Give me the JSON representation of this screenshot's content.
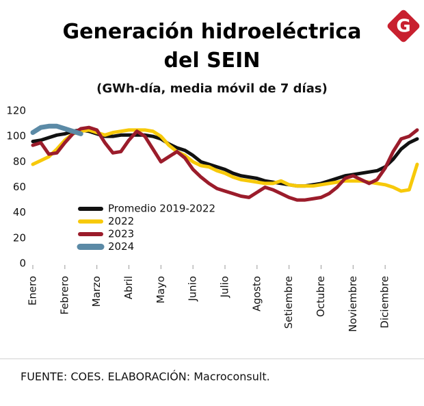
{
  "logo": "G",
  "chart_data": {
    "type": "line",
    "title": "Generación hidroeléctrica del SEIN",
    "subtitle": "(GWh-día, media móvil de 7 días)",
    "source": "FUENTE: COES. ELABORACIÓN: Macroconsult.",
    "x": [
      0,
      0.25,
      0.5,
      0.75,
      1,
      1.25,
      1.5,
      1.75,
      2,
      2.25,
      2.5,
      2.75,
      3,
      3.25,
      3.5,
      3.75,
      4,
      4.25,
      4.5,
      4.75,
      5,
      5.25,
      5.5,
      5.75,
      6,
      6.25,
      6.5,
      6.75,
      7,
      7.25,
      7.5,
      7.75,
      8,
      8.25,
      8.5,
      8.75,
      9,
      9.25,
      9.5,
      9.75,
      10,
      10.25,
      10.5,
      10.75,
      11,
      11.25,
      11.5,
      11.75,
      12
    ],
    "xlim": [
      0,
      12
    ],
    "xticks": [
      {
        "value": 0,
        "label": "Enero"
      },
      {
        "value": 1,
        "label": "Febrero"
      },
      {
        "value": 2,
        "label": "Marzo"
      },
      {
        "value": 3,
        "label": "Abril"
      },
      {
        "value": 4,
        "label": "Mayo"
      },
      {
        "value": 5,
        "label": "Junio"
      },
      {
        "value": 6,
        "label": "Julio"
      },
      {
        "value": 7,
        "label": "Agosto"
      },
      {
        "value": 8,
        "label": "Setiembre"
      },
      {
        "value": 9,
        "label": "Octubre"
      },
      {
        "value": 10,
        "label": "Noviembre"
      },
      {
        "value": 11,
        "label": "Diciembre"
      }
    ],
    "ylim": [
      0,
      120
    ],
    "yticks": [
      0,
      20,
      40,
      60,
      80,
      100,
      120
    ],
    "grid": false,
    "legend": "lower left",
    "series": [
      {
        "name": "Promedio 2019-2022",
        "color": "#111111",
        "values": [
          96,
          97,
          99,
          101,
          102,
          104,
          105,
          104,
          102,
          100,
          100,
          101,
          101,
          101,
          101,
          100,
          98,
          94,
          91,
          89,
          85,
          80,
          78,
          76,
          74,
          71,
          69,
          68,
          67,
          65,
          64,
          63,
          62,
          61,
          61,
          62,
          63,
          65,
          67,
          69,
          70,
          71,
          72,
          73,
          76,
          82,
          90,
          95,
          98
        ]
      },
      {
        "name": "2022",
        "color": "#f7c90a",
        "values": [
          78,
          81,
          84,
          90,
          97,
          102,
          104,
          105,
          103,
          101,
          103,
          104,
          105,
          105,
          105,
          104,
          100,
          93,
          88,
          85,
          80,
          77,
          76,
          73,
          71,
          68,
          66,
          65,
          64,
          63,
          63,
          65,
          62,
          61,
          61,
          61,
          62,
          63,
          64,
          65,
          65,
          65,
          64,
          63,
          62,
          60,
          57,
          58,
          78
        ]
      },
      {
        "name": "2023",
        "color": "#9b1c2b",
        "values": [
          93,
          95,
          86,
          87,
          95,
          102,
          106,
          107,
          105,
          95,
          87,
          88,
          97,
          104,
          100,
          90,
          80,
          84,
          88,
          83,
          74,
          68,
          63,
          59,
          57,
          55,
          53,
          52,
          56,
          60,
          58,
          55,
          52,
          50,
          50,
          51,
          52,
          55,
          60,
          67,
          69,
          66,
          63,
          66,
          75,
          88,
          98,
          100,
          105
        ]
      },
      {
        "name": "2024",
        "color": "#5b8aa6",
        "values": [
          103,
          107,
          108,
          108,
          106,
          104,
          102,
          null,
          null,
          null,
          null,
          null,
          null,
          null,
          null,
          null,
          null,
          null,
          null,
          null,
          null,
          null,
          null,
          null,
          null,
          null,
          null,
          null,
          null,
          null,
          null,
          null,
          null,
          null,
          null,
          null,
          null,
          null,
          null,
          null,
          null,
          null,
          null,
          null,
          null,
          null,
          null,
          null,
          null
        ]
      }
    ]
  }
}
